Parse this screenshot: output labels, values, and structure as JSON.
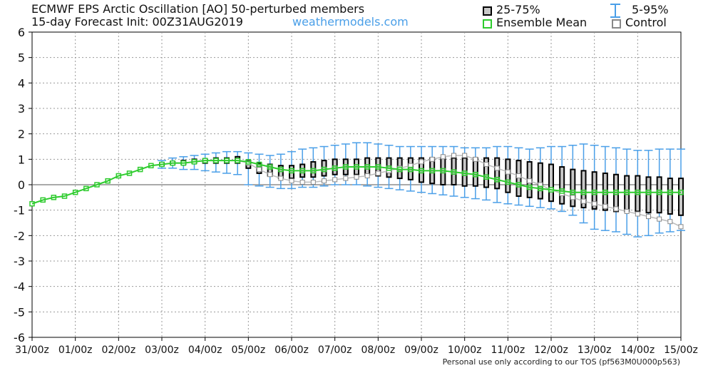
{
  "header": {
    "title_line1": "ECMWF EPS Arctic Oscillation [AO]  50-perturbed members",
    "title_line2": "15-day Forecast Init: 00Z31AUG2019",
    "brand": "weathermodels.com"
  },
  "legend": {
    "iqr": "25-75%",
    "whisker": "5-95%",
    "mean": "Ensemble Mean",
    "control": "Control"
  },
  "footer": "Personal use only according to our TOS (pf563M0U000p563)",
  "colors": {
    "box_fill": "#c8c8c8",
    "box_stroke": "#000000",
    "whisker": "#4a9fe8",
    "mean": "#2ecc2e",
    "control": "#888888",
    "grid": "#999999"
  },
  "chart_data": {
    "type": "box",
    "title": "ECMWF EPS Arctic Oscillation [AO]  50-perturbed members",
    "subtitle": "15-day Forecast Init: 00Z31AUG2019",
    "xlabel": "",
    "ylabel": "",
    "ylim": [
      -6,
      6
    ],
    "xlim": [
      0,
      15
    ],
    "yticks": [
      "-6",
      "-5",
      "-4",
      "-3",
      "-2",
      "-1",
      "0",
      "1",
      "2",
      "3",
      "4",
      "5",
      "6"
    ],
    "xticks": [
      "31/00z",
      "01/00z",
      "02/00z",
      "03/00z",
      "04/00z",
      "05/00z",
      "06/00z",
      "07/00z",
      "08/00z",
      "09/00z",
      "10/00z",
      "11/00z",
      "12/00z",
      "13/00z",
      "14/00z",
      "15/00z"
    ],
    "grid": true,
    "legend_position": "top-right",
    "x_step_days": 0.25,
    "series": [
      {
        "name": "Ensemble Mean",
        "values": [
          -0.75,
          -0.6,
          -0.5,
          -0.45,
          -0.3,
          -0.15,
          0.0,
          0.15,
          0.35,
          0.45,
          0.6,
          0.75,
          0.8,
          0.85,
          0.85,
          0.9,
          0.95,
          0.95,
          0.95,
          0.95,
          0.9,
          0.8,
          0.7,
          0.6,
          0.55,
          0.55,
          0.55,
          0.6,
          0.65,
          0.7,
          0.7,
          0.7,
          0.7,
          0.65,
          0.6,
          0.6,
          0.55,
          0.55,
          0.55,
          0.5,
          0.45,
          0.4,
          0.3,
          0.2,
          0.1,
          0.0,
          -0.1,
          -0.15,
          -0.2,
          -0.25,
          -0.3,
          -0.3,
          -0.3,
          -0.3,
          -0.3,
          -0.3,
          -0.3,
          -0.3,
          -0.3,
          -0.3,
          -0.3
        ]
      },
      {
        "name": "Control",
        "values": [
          -0.75,
          -0.6,
          -0.5,
          -0.45,
          -0.3,
          -0.15,
          0.0,
          0.15,
          0.35,
          0.45,
          0.6,
          0.75,
          0.8,
          0.85,
          0.85,
          0.9,
          0.95,
          0.95,
          0.95,
          0.95,
          0.85,
          0.6,
          0.4,
          0.25,
          0.15,
          0.1,
          0.1,
          0.15,
          0.2,
          0.25,
          0.3,
          0.35,
          0.45,
          0.55,
          0.65,
          0.75,
          0.9,
          1.0,
          1.1,
          1.15,
          1.15,
          1.0,
          0.8,
          0.65,
          0.5,
          0.35,
          0.15,
          0.0,
          -0.2,
          -0.35,
          -0.5,
          -0.65,
          -0.75,
          -0.85,
          -0.95,
          -1.05,
          -1.15,
          -1.25,
          -1.35,
          -1.45,
          -1.65
        ]
      },
      {
        "name": "25-75%",
        "lower": [
          -0.75,
          -0.6,
          -0.5,
          -0.45,
          -0.3,
          -0.15,
          0.0,
          0.15,
          0.35,
          0.45,
          0.6,
          0.75,
          0.75,
          0.8,
          0.8,
          0.85,
          0.85,
          0.85,
          0.85,
          0.85,
          0.65,
          0.45,
          0.35,
          0.25,
          0.25,
          0.3,
          0.3,
          0.35,
          0.4,
          0.4,
          0.4,
          0.4,
          0.35,
          0.3,
          0.25,
          0.2,
          0.1,
          0.05,
          0.0,
          0.0,
          -0.05,
          -0.05,
          -0.1,
          -0.15,
          -0.3,
          -0.45,
          -0.5,
          -0.55,
          -0.65,
          -0.75,
          -0.85,
          -0.9,
          -0.95,
          -1.0,
          -1.05,
          -1.05,
          -1.05,
          -1.1,
          -1.1,
          -1.15,
          -1.2
        ],
        "upper": [
          -0.75,
          -0.6,
          -0.5,
          -0.45,
          -0.3,
          -0.15,
          0.0,
          0.15,
          0.35,
          0.45,
          0.6,
          0.75,
          0.85,
          0.9,
          0.95,
          1.0,
          1.0,
          1.05,
          1.05,
          1.1,
          0.95,
          0.85,
          0.8,
          0.75,
          0.75,
          0.8,
          0.9,
          0.95,
          1.0,
          1.0,
          1.0,
          1.05,
          1.05,
          1.05,
          1.05,
          1.05,
          1.05,
          1.05,
          1.05,
          1.05,
          1.05,
          1.05,
          1.05,
          1.05,
          1.0,
          0.95,
          0.9,
          0.85,
          0.8,
          0.7,
          0.6,
          0.55,
          0.5,
          0.45,
          0.4,
          0.35,
          0.35,
          0.3,
          0.3,
          0.25,
          0.25
        ]
      },
      {
        "name": "5-95%",
        "lower": [
          -0.75,
          -0.6,
          -0.5,
          -0.45,
          -0.3,
          -0.15,
          0.0,
          0.15,
          0.35,
          0.45,
          0.6,
          0.75,
          0.65,
          0.65,
          0.6,
          0.6,
          0.55,
          0.5,
          0.45,
          0.4,
          0.0,
          -0.05,
          -0.1,
          -0.15,
          -0.15,
          -0.1,
          -0.1,
          -0.05,
          0.0,
          0.0,
          0.0,
          -0.05,
          -0.1,
          -0.15,
          -0.2,
          -0.25,
          -0.3,
          -0.35,
          -0.4,
          -0.45,
          -0.5,
          -0.55,
          -0.6,
          -0.7,
          -0.75,
          -0.8,
          -0.85,
          -0.9,
          -0.95,
          -1.05,
          -1.2,
          -1.5,
          -1.75,
          -1.8,
          -1.85,
          -1.95,
          -2.05,
          -2.0,
          -1.9,
          -1.85,
          -1.8
        ],
        "upper": [
          -0.75,
          -0.6,
          -0.5,
          -0.45,
          -0.3,
          -0.15,
          0.0,
          0.15,
          0.35,
          0.45,
          0.6,
          0.75,
          0.95,
          1.05,
          1.1,
          1.15,
          1.2,
          1.25,
          1.3,
          1.3,
          1.25,
          1.2,
          1.15,
          1.2,
          1.3,
          1.4,
          1.45,
          1.5,
          1.55,
          1.6,
          1.65,
          1.65,
          1.6,
          1.55,
          1.5,
          1.5,
          1.5,
          1.5,
          1.5,
          1.5,
          1.45,
          1.45,
          1.45,
          1.5,
          1.5,
          1.45,
          1.4,
          1.45,
          1.5,
          1.5,
          1.55,
          1.6,
          1.55,
          1.5,
          1.45,
          1.4,
          1.35,
          1.35,
          1.4,
          1.4,
          1.4
        ]
      }
    ]
  }
}
